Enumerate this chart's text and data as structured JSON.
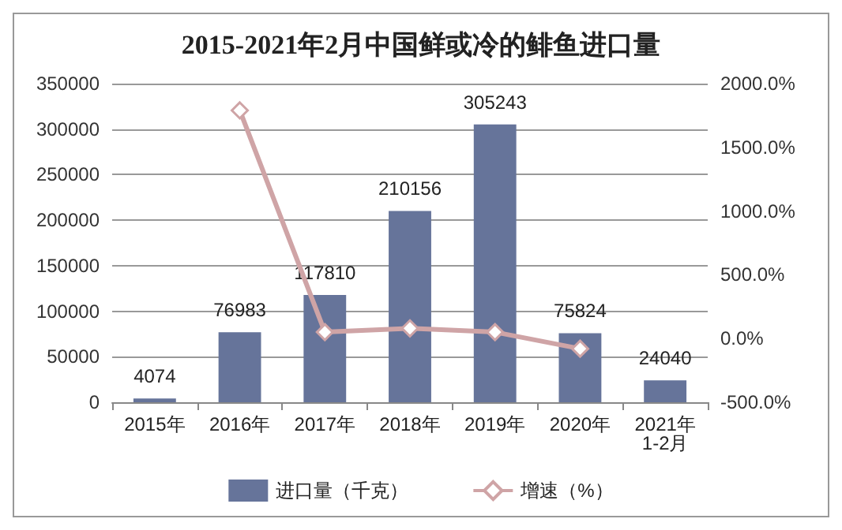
{
  "chart_data": {
    "type": "bar",
    "title": "2015-2021年2月中国鲜或冷的鲱鱼进口量",
    "categories": [
      "2015年",
      "2016年",
      "2017年",
      "2018年",
      "2019年",
      "2020年",
      "2021年1-2月"
    ],
    "series": [
      {
        "name": "进口量（千克）",
        "color": "#66749a",
        "values": [
          4074,
          76983,
          117810,
          210156,
          305243,
          75824,
          24040
        ],
        "data_labels": true
      },
      {
        "name": "增速（%）",
        "type": "line",
        "axis": "y2",
        "color": "#cfa4a6",
        "marker": "diamond",
        "values": [
          null,
          1790,
          50,
          80,
          50,
          -80,
          null
        ]
      }
    ],
    "ylim": [
      0,
      350000
    ],
    "yticks": [
      0,
      50000,
      100000,
      150000,
      200000,
      250000,
      300000,
      350000
    ],
    "y2lim": [
      -500,
      2000
    ],
    "y2ticks": [
      {
        "value": -500,
        "label": "-500.0%"
      },
      {
        "value": 0,
        "label": "0.0%"
      },
      {
        "value": 500,
        "label": "500.0%"
      },
      {
        "value": 1000,
        "label": "1000.0%"
      },
      {
        "value": 1500,
        "label": "1500.0%"
      },
      {
        "value": 2000,
        "label": "2000.0%"
      }
    ],
    "grid": "y",
    "legend": "bottom"
  }
}
